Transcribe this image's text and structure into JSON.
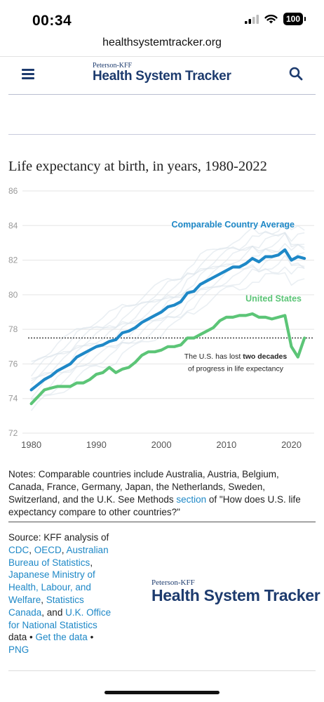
{
  "status_bar": {
    "time": "00:34",
    "battery": "100"
  },
  "browser": {
    "url": "healthsystemtracker.org"
  },
  "header": {
    "logo_top": "Peterson-KFF",
    "logo_main": "Health System Tracker"
  },
  "chart_data": {
    "type": "line",
    "title": "Life expectancy at birth, in years, 1980-2022",
    "xlim": [
      1979.5,
      2023.5
    ],
    "ylim": [
      72,
      86
    ],
    "x_ticks": [
      "1980",
      "1990",
      "2000",
      "2010",
      "2020"
    ],
    "y_ticks": [
      "72",
      "74",
      "76",
      "78",
      "80",
      "82",
      "84",
      "86"
    ],
    "grid": true,
    "series": [
      {
        "name": "Comparable Country Average",
        "color": "#1e88c7",
        "x": [
          1980,
          1981,
          1982,
          1983,
          1984,
          1985,
          1986,
          1987,
          1988,
          1989,
          1990,
          1991,
          1992,
          1993,
          1994,
          1995,
          1996,
          1997,
          1998,
          1999,
          2000,
          2001,
          2002,
          2003,
          2004,
          2005,
          2006,
          2007,
          2008,
          2009,
          2010,
          2011,
          2012,
          2013,
          2014,
          2015,
          2016,
          2017,
          2018,
          2019,
          2020,
          2021,
          2022
        ],
        "y": [
          74.5,
          74.8,
          75.1,
          75.3,
          75.6,
          75.8,
          76.0,
          76.4,
          76.6,
          76.8,
          77.0,
          77.1,
          77.3,
          77.4,
          77.8,
          77.9,
          78.1,
          78.4,
          78.6,
          78.8,
          79.0,
          79.3,
          79.4,
          79.6,
          80.1,
          80.2,
          80.6,
          80.8,
          81.0,
          81.2,
          81.4,
          81.6,
          81.6,
          81.8,
          82.1,
          81.9,
          82.2,
          82.2,
          82.3,
          82.6,
          82.0,
          82.2,
          82.1
        ]
      },
      {
        "name": "United States",
        "color": "#5cc577",
        "x": [
          1980,
          1981,
          1982,
          1983,
          1984,
          1985,
          1986,
          1987,
          1988,
          1989,
          1990,
          1991,
          1992,
          1993,
          1994,
          1995,
          1996,
          1997,
          1998,
          1999,
          2000,
          2001,
          2002,
          2003,
          2004,
          2005,
          2006,
          2007,
          2008,
          2009,
          2010,
          2011,
          2012,
          2013,
          2014,
          2015,
          2016,
          2017,
          2018,
          2019,
          2020,
          2021,
          2022
        ],
        "y": [
          73.7,
          74.1,
          74.5,
          74.6,
          74.7,
          74.7,
          74.7,
          74.9,
          74.9,
          75.1,
          75.4,
          75.5,
          75.8,
          75.5,
          75.7,
          75.8,
          76.1,
          76.5,
          76.7,
          76.7,
          76.8,
          77.0,
          77.0,
          77.1,
          77.5,
          77.5,
          77.7,
          77.9,
          78.1,
          78.5,
          78.7,
          78.7,
          78.8,
          78.8,
          78.9,
          78.7,
          78.7,
          78.6,
          78.7,
          78.8,
          77.0,
          76.4,
          77.5
        ]
      }
    ],
    "reference_line": {
      "y": 77.5,
      "style": "dotted"
    },
    "annotation": {
      "line1_prefix": "The U.S. has lost ",
      "line1_bold": "two decades",
      "line2": "of progress in life expectancy"
    }
  },
  "notes": {
    "text_before": "Notes: Comparable countries include Australia, Austria, Belgium, Canada, France, Germany, Japan, the Netherlands, Sweden, Switzerland, and the U.K. See Methods ",
    "link": "section",
    "text_after": " of \"How does U.S. life expectancy compare to other countries?\""
  },
  "source": {
    "prefix": "Source: KFF analysis of ",
    "cdc": "CDC",
    "oecd": "OECD",
    "abs": "Australian Bureau of Statistics",
    "japan": "Japanese Ministry of Health, Labour, and Welfare",
    "canada": "Statistics Canada",
    "uk": "U.K. Office for National Statistics",
    "data_word": "data",
    "get_data": "Get the data",
    "png": "PNG",
    "sep": " • "
  },
  "footer": {
    "logo_top": "Peterson-KFF",
    "logo_main": "Health System Tracker"
  }
}
